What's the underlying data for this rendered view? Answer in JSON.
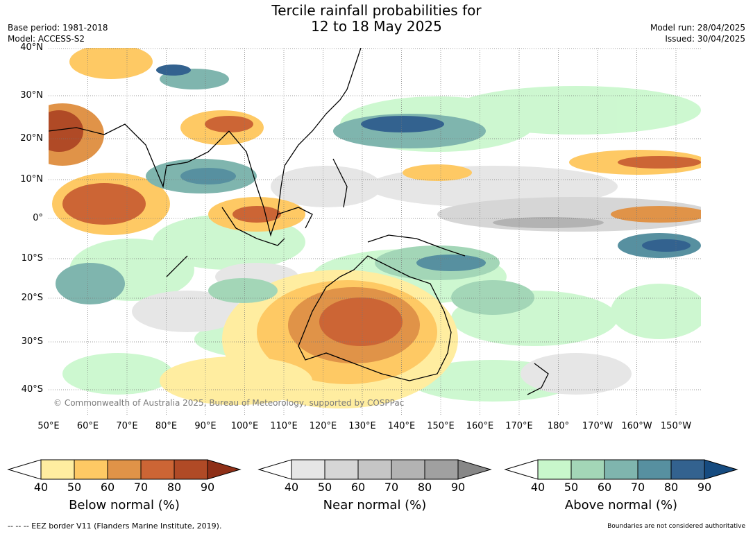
{
  "title": {
    "line1": "Tercile rainfall probabilities for",
    "line2": "12 to 18 May 2025"
  },
  "meta_left": {
    "base_period": "Base period: 1981-2018",
    "model": "Model: ACCESS-S2"
  },
  "meta_right": {
    "model_run": "Model run: 28/04/2025",
    "issued": "Issued: 30/04/2025"
  },
  "map": {
    "lat_labels": [
      "40°N",
      "30°N",
      "20°N",
      "10°N",
      "0°",
      "10°S",
      "20°S",
      "30°S",
      "40°S"
    ],
    "lon_labels": [
      "50°E",
      "60°E",
      "70°E",
      "80°E",
      "90°E",
      "100°E",
      "110°E",
      "120°E",
      "130°E",
      "140°E",
      "150°E",
      "160°E",
      "170°E",
      "180°",
      "170°W",
      "160°W",
      "150°W"
    ],
    "credit": "© Commonwealth of Australia 2025, Bureau of Meteorology, supported by COSPPac"
  },
  "colorbars": [
    {
      "title": "Below normal (%)",
      "ticks": [
        "40",
        "50",
        "60",
        "70",
        "80",
        "90"
      ],
      "colors": [
        "#ffeda0",
        "#fec964",
        "#e09348",
        "#cc6535",
        "#b04a26",
        "#8e2f17"
      ]
    },
    {
      "title": "Near normal (%)",
      "ticks": [
        "40",
        "50",
        "60",
        "70",
        "80",
        "90"
      ],
      "colors": [
        "#e6e6e6",
        "#d6d6d6",
        "#c6c6c6",
        "#b3b3b3",
        "#a0a0a0",
        "#878787"
      ]
    },
    {
      "title": "Above normal (%)",
      "ticks": [
        "40",
        "50",
        "60",
        "70",
        "80",
        "90"
      ],
      "colors": [
        "#c8f7cb",
        "#a3d6b7",
        "#7fb5ae",
        "#5790a0",
        "#33628f",
        "#164b80"
      ]
    }
  ],
  "footer": {
    "left": "--  --  -- EEZ border V11 (Flanders Marine Institute, 2019).",
    "right": "Boundaries are not considered authoritative"
  }
}
